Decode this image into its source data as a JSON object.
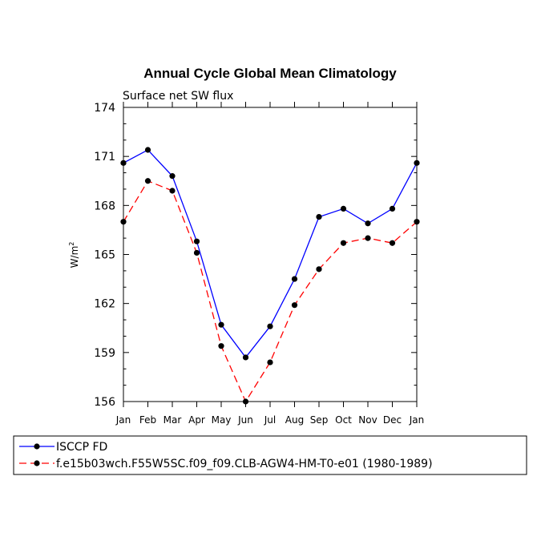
{
  "chart_data": {
    "type": "line",
    "title": "Annual Cycle Global Mean Climatology",
    "subtitle": "Surface net SW flux",
    "ylabel": "W/m",
    "ylabel_sup": "2",
    "xlabel": "",
    "categories": [
      "Jan",
      "Feb",
      "Mar",
      "Apr",
      "May",
      "Jun",
      "Jul",
      "Aug",
      "Sep",
      "Oct",
      "Nov",
      "Dec",
      "Jan"
    ],
    "ylim": [
      156,
      174
    ],
    "yticks": [
      156,
      159,
      162,
      165,
      168,
      171,
      174
    ],
    "grid": false,
    "legend_position": "bottom",
    "series": [
      {
        "name": "ISCCP FD",
        "color": "#0000ff",
        "dash": "solid",
        "values": [
          170.6,
          171.4,
          169.8,
          165.8,
          160.7,
          158.7,
          160.6,
          163.5,
          167.3,
          167.8,
          166.9,
          167.8,
          170.6
        ]
      },
      {
        "name": "f.e15b03wch.F55W5SC.f09_f09.CLB-AGW4-HM-T0-e01 (1980-1989)",
        "color": "#ff0000",
        "dash": "dashed",
        "values": [
          167.0,
          169.5,
          168.9,
          165.1,
          159.4,
          156.0,
          158.4,
          161.9,
          164.1,
          165.7,
          166.0,
          165.7,
          167.0
        ]
      }
    ]
  }
}
